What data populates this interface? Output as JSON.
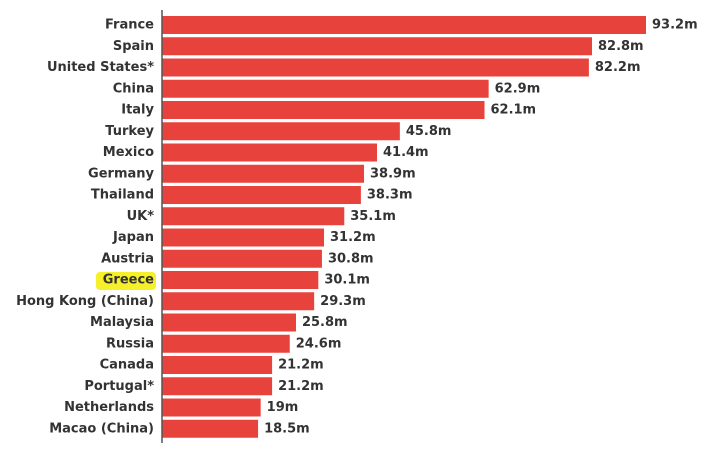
{
  "chart_data": {
    "type": "bar",
    "orientation": "horizontal",
    "categories": [
      "France",
      "Spain",
      "United States*",
      "China",
      "Italy",
      "Turkey",
      "Mexico",
      "Germany",
      "Thailand",
      "UK*",
      "Japan",
      "Austria",
      "Greece",
      "Hong Kong (China)",
      "Malaysia",
      "Russia",
      "Canada",
      "Portugal*",
      "Netherlands",
      "Macao (China)"
    ],
    "values": [
      93.2,
      82.8,
      82.2,
      62.9,
      62.1,
      45.8,
      41.4,
      38.9,
      38.3,
      35.1,
      31.2,
      30.8,
      30.1,
      29.3,
      25.8,
      24.6,
      21.2,
      21.2,
      19,
      18.5
    ],
    "value_labels": [
      "93.2m",
      "82.8m",
      "82.2m",
      "62.9m",
      "62.1m",
      "45.8m",
      "41.4m",
      "38.9m",
      "38.3m",
      "35.1m",
      "31.2m",
      "30.8m",
      "30.1m",
      "29.3m",
      "25.8m",
      "24.6m",
      "21.2m",
      "21.2m",
      "19m",
      "18.5m"
    ],
    "highlighted_category": "Greece",
    "title": "",
    "xlabel": "",
    "ylabel": "",
    "xlim": [
      0,
      93.2
    ],
    "grid": false,
    "legend": "none",
    "colors": {
      "bar": "#e8423c",
      "axis": "#555555",
      "highlight": "#f6f02a",
      "text": "#333333"
    }
  }
}
